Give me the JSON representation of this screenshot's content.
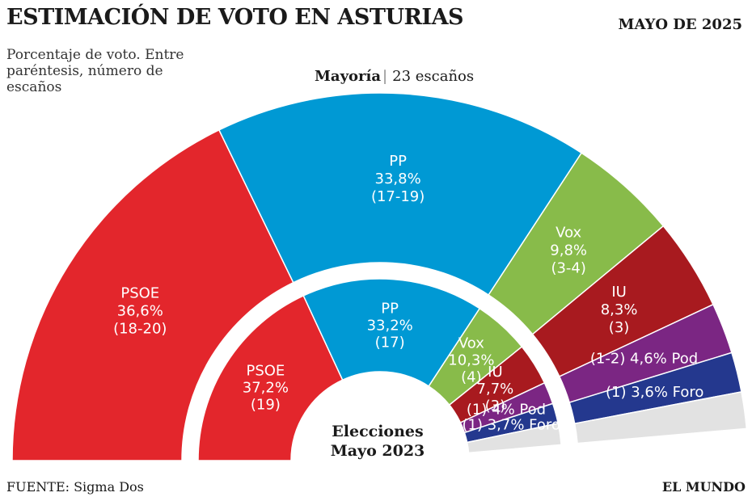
{
  "header": {
    "title": "ESTIMACIÓN DE VOTO EN ASTURIAS",
    "date": "MAYO DE 2025",
    "subtitle": "Porcentaje de voto. Entre paréntesis, número de escaños"
  },
  "majority": {
    "label": "Mayoría",
    "value": "23 escaños"
  },
  "footer": {
    "source": "FUENTE: Sigma Dos",
    "brand": "EL MUNDO"
  },
  "chart_data": [
    {
      "type": "pie",
      "variant": "semicircle-donut-outer-ring",
      "series": [
        {
          "name": "PSOE",
          "value": 36.6,
          "pct_label": "36,6%",
          "seats": "(18-20)",
          "color": "#e3262c"
        },
        {
          "name": "PP",
          "value": 33.8,
          "pct_label": "33,8%",
          "seats": "(17-19)",
          "color": "#0099d4"
        },
        {
          "name": "Vox",
          "value": 9.8,
          "pct_label": "9,8%",
          "seats": "(3-4)",
          "color": "#88bb4a"
        },
        {
          "name": "IU",
          "value": 8.3,
          "pct_label": "8,3%",
          "seats": "(3)",
          "color": "#a81a1f"
        },
        {
          "name": "Pod",
          "value": 4.6,
          "pct_label": "4,6%",
          "seats": "(1-2)",
          "color": "#7b2683"
        },
        {
          "name": "Foro",
          "value": 3.6,
          "pct_label": "3,6%",
          "seats": "(1)",
          "color": "#24388e"
        }
      ],
      "remainder_color": "#e2e2e2"
    },
    {
      "type": "pie",
      "variant": "semicircle-donut-inner-ring",
      "center_label": [
        "Elecciones",
        "Mayo 2023"
      ],
      "series": [
        {
          "name": "PSOE",
          "value": 37.2,
          "pct_label": "37,2%",
          "seats": "(19)",
          "color": "#e3262c"
        },
        {
          "name": "PP",
          "value": 33.2,
          "pct_label": "33,2%",
          "seats": "(17)",
          "color": "#0099d4"
        },
        {
          "name": "Vox",
          "value": 10.3,
          "pct_label": "10,3%",
          "seats": "(4)",
          "color": "#88bb4a"
        },
        {
          "name": "IU",
          "value": 7.7,
          "pct_label": "7,7%",
          "seats": "(3)",
          "color": "#a81a1f"
        },
        {
          "name": "Pod",
          "value": 4,
          "pct_label": "4%",
          "seats": "(1)",
          "color": "#7b2683"
        },
        {
          "name": "Foro",
          "value": 3.7,
          "pct_label": "3,7%",
          "seats": "(1)",
          "color": "#24388e"
        }
      ],
      "remainder_color": "#e2e2e2"
    }
  ]
}
